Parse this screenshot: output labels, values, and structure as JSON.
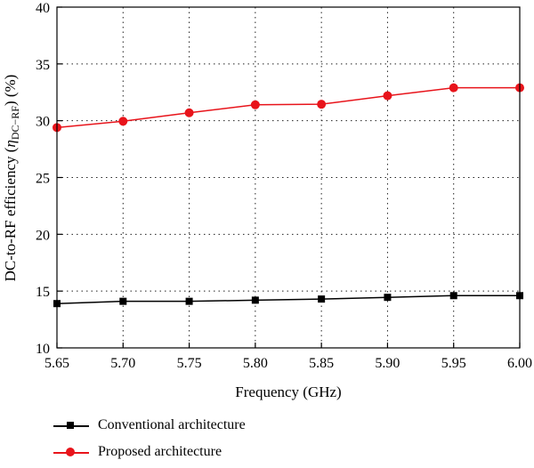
{
  "chart_data": {
    "type": "line",
    "title": "",
    "xlabel": "Frequency (GHz)",
    "ylabel_main": "DC-to-RF efficiency (",
    "ylabel_symbol": "η",
    "ylabel_sub": "DC−RF",
    "ylabel_tail": ") (%)",
    "x": [
      5.65,
      5.7,
      5.75,
      5.8,
      5.85,
      5.9,
      5.95,
      6.0
    ],
    "x_tick_labels": [
      "5.65",
      "5.70",
      "5.75",
      "5.80",
      "5.85",
      "5.90",
      "5.95",
      "6.00"
    ],
    "xlim": [
      5.65,
      6.0
    ],
    "ylim": [
      10,
      40
    ],
    "y_ticks": [
      10,
      15,
      20,
      25,
      30,
      35,
      40
    ],
    "y_tick_labels": [
      "10",
      "15",
      "20",
      "25",
      "30",
      "35",
      "40"
    ],
    "grid": true,
    "legend_position": "bottom-left, below plot",
    "series": [
      {
        "name": "Conventional architecture",
        "color": "#000000",
        "marker": "square",
        "values": [
          13.9,
          14.1,
          14.1,
          14.2,
          14.3,
          14.45,
          14.6,
          14.6
        ]
      },
      {
        "name": "Proposed architecture",
        "color": "#e8141b",
        "marker": "circle",
        "values": [
          29.4,
          29.95,
          30.7,
          31.4,
          31.45,
          32.2,
          32.9,
          32.9
        ]
      }
    ]
  }
}
